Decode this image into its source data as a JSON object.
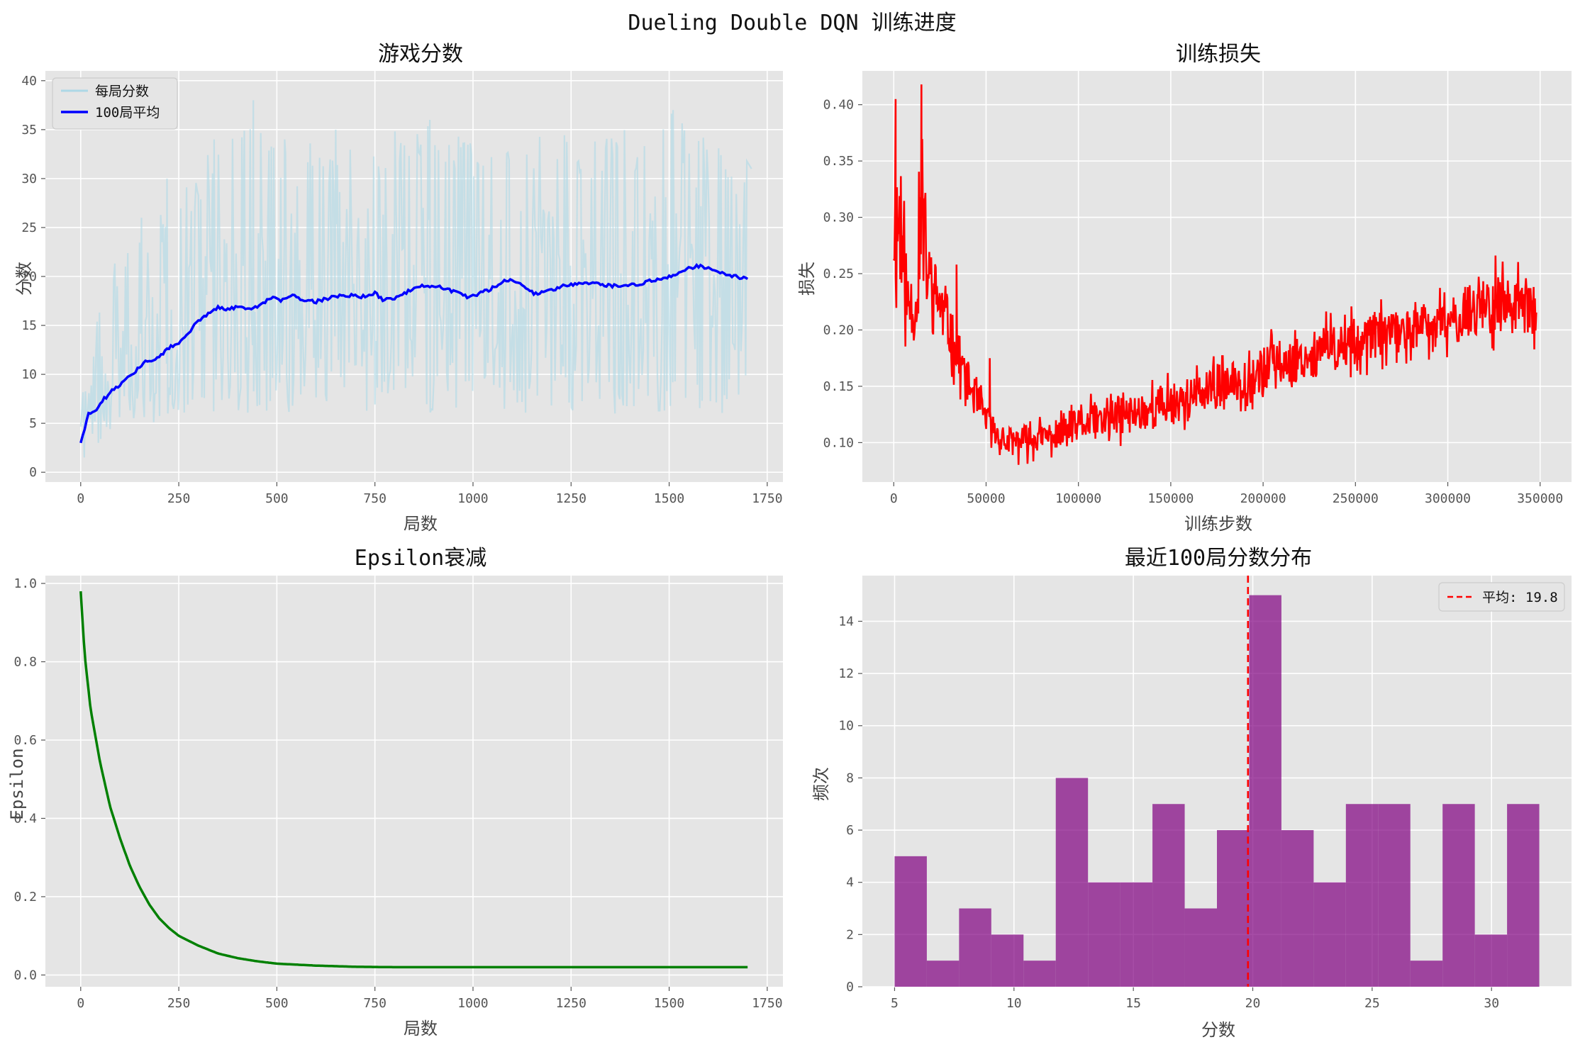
{
  "suptitle": "Dueling Double DQN 训练进度",
  "chart_data": [
    {
      "type": "line",
      "title": "游戏分数",
      "xlabel": "局数",
      "ylabel": "分数",
      "xlim": [
        -90,
        1790
      ],
      "ylim": [
        -1,
        41
      ],
      "xticks": [
        0,
        250,
        500,
        750,
        1000,
        1250,
        1500,
        1750
      ],
      "yticks": [
        0,
        5,
        10,
        15,
        20,
        25,
        30,
        35,
        40
      ],
      "grid": true,
      "legend": "top-left",
      "series": [
        {
          "name": "每局分数",
          "color": "#add8e6",
          "x": [
            0,
            30,
            60,
            100,
            150,
            200,
            250,
            300,
            350,
            400,
            450,
            500,
            550,
            600,
            650,
            700,
            750,
            800,
            850,
            900,
            950,
            1000,
            1050,
            1100,
            1150,
            1200,
            1250,
            1300,
            1350,
            1400,
            1450,
            1500,
            1550,
            1600,
            1650,
            1700
          ],
          "y_low": [
            1,
            2,
            4,
            4,
            5,
            5,
            5,
            6,
            6,
            6,
            5,
            6,
            6,
            6,
            6,
            6,
            6,
            6,
            6,
            6,
            6,
            6,
            6,
            6,
            6,
            6,
            6,
            6,
            6,
            6,
            6,
            6,
            6,
            6,
            6,
            6
          ],
          "y_high": [
            11,
            14,
            22,
            21,
            25,
            26,
            30,
            31,
            34,
            38,
            36,
            34,
            33,
            34,
            32,
            34,
            33,
            35,
            36,
            36,
            35,
            34,
            35,
            35,
            34,
            35,
            35,
            34,
            35,
            35,
            34,
            37,
            35,
            34,
            33,
            32
          ],
          "notable": [
            [
              155,
              26
            ],
            [
              220,
              30
            ],
            [
              340,
              34
            ],
            [
              440,
              38
            ],
            [
              520,
              34
            ],
            [
              650,
              35
            ],
            [
              890,
              36
            ],
            [
              1510,
              37
            ],
            [
              1710,
              31
            ]
          ]
        },
        {
          "name": "100局平均",
          "color": "#0000ff",
          "x": [
            0,
            10,
            20,
            40,
            60,
            80,
            100,
            120,
            140,
            160,
            180,
            200,
            230,
            250,
            270,
            290,
            310,
            330,
            350,
            380,
            400,
            430,
            460,
            490,
            510,
            540,
            570,
            600,
            640,
            680,
            710,
            750,
            770,
            800,
            830,
            870,
            900,
            930,
            960,
            990,
            1010,
            1040,
            1080,
            1100,
            1130,
            1160,
            1190,
            1220,
            1250,
            1280,
            1310,
            1340,
            1370,
            1400,
            1430,
            1460,
            1490,
            1520,
            1550,
            1580,
            1600,
            1620,
            1650,
            1680,
            1700
          ],
          "y": [
            3,
            4.5,
            6,
            6.5,
            7.5,
            8.3,
            9,
            9.6,
            10.3,
            11.2,
            11.3,
            11.8,
            12.8,
            13.2,
            13.9,
            15.1,
            15.7,
            16.3,
            16.8,
            16.6,
            17.0,
            16.6,
            17.2,
            17.9,
            17.6,
            18.1,
            17.6,
            17.4,
            17.9,
            18.1,
            17.9,
            18.3,
            17.6,
            17.8,
            18.4,
            19.0,
            19.1,
            18.7,
            18.3,
            17.8,
            18.2,
            18.6,
            19.6,
            19.7,
            18.9,
            18.2,
            18.5,
            18.9,
            19.2,
            19.4,
            19.3,
            19.1,
            19.0,
            19.1,
            19.3,
            19.6,
            19.8,
            20.3,
            20.9,
            21.1,
            20.8,
            20.5,
            20.2,
            19.9,
            19.8
          ]
        }
      ]
    },
    {
      "type": "line",
      "title": "训练损失",
      "xlabel": "训练步数",
      "ylabel": "损失",
      "xlim": [
        -17000,
        367000
      ],
      "ylim": [
        0.065,
        0.43
      ],
      "xticks": [
        0,
        50000,
        100000,
        150000,
        200000,
        250000,
        300000,
        350000
      ],
      "yticks": [
        0.1,
        0.15,
        0.2,
        0.25,
        0.3,
        0.35,
        0.4
      ],
      "grid": true,
      "series": [
        {
          "name": "",
          "color": "#ff0000",
          "x": [
            0,
            3000,
            7000,
            12000,
            15000,
            18000,
            25000,
            35000,
            45000,
            55000,
            60000,
            70000,
            80000,
            90000,
            100000,
            120000,
            140000,
            160000,
            180000,
            200000,
            220000,
            240000,
            260000,
            280000,
            300000,
            320000,
            340000,
            348000
          ],
          "y_low": [
            0.21,
            0.19,
            0.18,
            0.18,
            0.18,
            0.2,
            0.18,
            0.14,
            0.11,
            0.09,
            0.08,
            0.08,
            0.085,
            0.085,
            0.09,
            0.095,
            0.1,
            0.11,
            0.12,
            0.13,
            0.14,
            0.15,
            0.16,
            0.17,
            0.17,
            0.18,
            0.18,
            0.18
          ],
          "y_high": [
            0.36,
            0.41,
            0.27,
            0.25,
            0.42,
            0.3,
            0.27,
            0.21,
            0.16,
            0.13,
            0.12,
            0.125,
            0.125,
            0.13,
            0.14,
            0.15,
            0.16,
            0.17,
            0.18,
            0.2,
            0.21,
            0.22,
            0.23,
            0.23,
            0.24,
            0.27,
            0.26,
            0.26
          ],
          "peaks": [
            [
              1000,
              0.405
            ],
            [
              15000,
              0.418
            ],
            [
              34000,
              0.258
            ],
            [
              52000,
              0.175
            ]
          ]
        }
      ]
    },
    {
      "type": "line",
      "title": "Epsilon衰减",
      "xlabel": "局数",
      "ylabel": "Epsilon",
      "xlim": [
        -90,
        1790
      ],
      "ylim": [
        -0.03,
        1.02
      ],
      "xticks": [
        0,
        250,
        500,
        750,
        1000,
        1250,
        1500,
        1750
      ],
      "yticks": [
        0.0,
        0.2,
        0.4,
        0.6,
        0.8,
        1.0
      ],
      "grid": true,
      "series": [
        {
          "name": "",
          "color": "#008000",
          "x": [
            0,
            10,
            25,
            50,
            75,
            100,
            125,
            150,
            175,
            200,
            225,
            250,
            300,
            350,
            400,
            450,
            500,
            600,
            700,
            800,
            1000,
            1200,
            1400,
            1700
          ],
          "y": [
            0.98,
            0.82,
            0.68,
            0.54,
            0.43,
            0.35,
            0.28,
            0.225,
            0.18,
            0.145,
            0.12,
            0.1,
            0.075,
            0.055,
            0.043,
            0.035,
            0.029,
            0.024,
            0.021,
            0.02,
            0.02,
            0.02,
            0.02,
            0.02
          ]
        }
      ]
    },
    {
      "type": "bar",
      "title": "最近100局分数分布",
      "xlabel": "分数",
      "ylabel": "频次",
      "xlim": [
        3.65,
        33.35
      ],
      "ylim": [
        0,
        15.75
      ],
      "xticks": [
        5,
        10,
        15,
        20,
        25,
        30
      ],
      "yticks": [
        0,
        2,
        4,
        6,
        8,
        10,
        12,
        14
      ],
      "grid": true,
      "legend": "top-right",
      "bin_edges": [
        5,
        6.35,
        7.7,
        9.05,
        10.4,
        11.75,
        13.1,
        14.45,
        15.8,
        17.15,
        18.5,
        19.85,
        21.2,
        22.55,
        23.9,
        25.25,
        26.6,
        27.95,
        29.3,
        30.65,
        32
      ],
      "values": [
        5,
        1,
        3,
        2,
        1,
        8,
        4,
        4,
        7,
        3,
        6,
        15,
        6,
        4,
        7,
        7,
        1,
        7,
        2,
        7
      ],
      "bar_color": "#800080",
      "mean_line": {
        "value": 19.8,
        "label": "平均: 19.8",
        "color": "#ff0000"
      }
    }
  ]
}
